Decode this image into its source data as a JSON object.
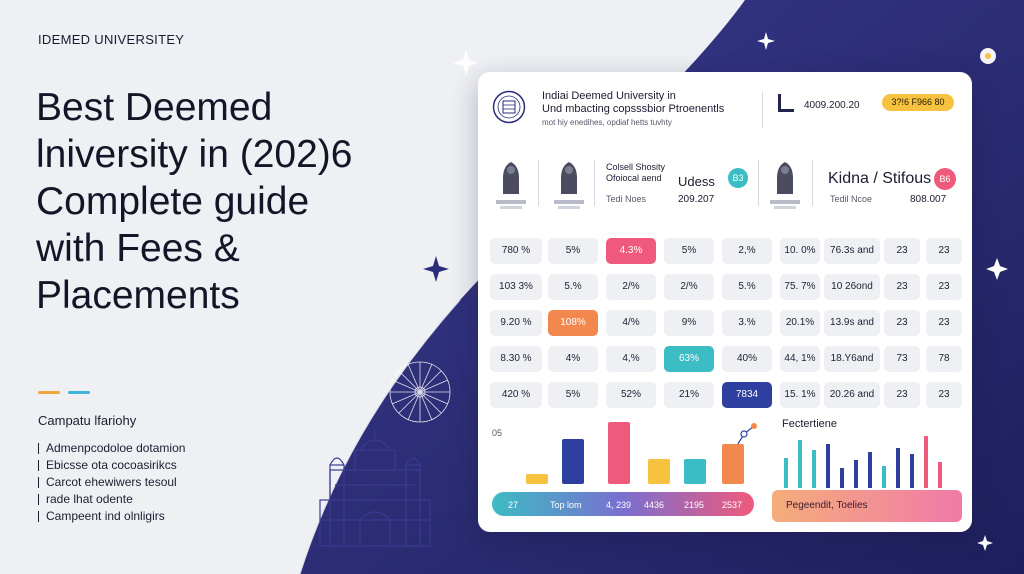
{
  "brand": "IDEMED UNIVERSITEY",
  "headline": [
    "Best Deemed",
    "lniversity in (202)6",
    "Complete guide",
    "with Fees &",
    "Placements"
  ],
  "section_title": "Campatu lfariohy",
  "bullets": [
    "Admenpcodoloe dotamion",
    "Ebicsse ota cocoasirikcs",
    "Carcot ehewiwers tesoul",
    "rade lhat odente",
    "Campeent ind olnligirs"
  ],
  "colors": {
    "navy": "#2c2d7a",
    "pink": "#ef5a7c",
    "orange": "#f2884d",
    "teal": "#3cbcc4",
    "blue": "#2e3fa0",
    "yellow": "#f6c240"
  },
  "card": {
    "header": {
      "line1": "Indiai Deemed University in",
      "line2": "Und mbacting copsssbior Ptroenentls",
      "line3": "mot hiy enedihes, opdiaf hetts tuvhty",
      "code": "4009.200.20",
      "badge": "3?!6 F966 80"
    },
    "inst1": {
      "desc": "Colsell Shosity Ofoiocal aend",
      "name": "Udess",
      "badge": "B3",
      "sub": "Tedi Noes",
      "value": "209.207"
    },
    "inst2": {
      "name": "Kidna / Stifous",
      "badge": "B6",
      "sub": "Tedil Ncoe",
      "value": "808.007"
    },
    "rows": [
      [
        "780 %",
        "5%",
        "4.3%",
        "5%",
        "2,%",
        "10. 0%",
        "76.3s and",
        "23",
        "23"
      ],
      [
        "103 3%",
        "5.%",
        "2/%",
        "2/%",
        "5.%",
        "75. 7%",
        "10 26ond",
        "23",
        "23"
      ],
      [
        "9.20 %",
        "108%",
        "4/%",
        "9%",
        "3.%",
        "20.1%",
        "13.9s and",
        "23",
        "23"
      ],
      [
        "8.30 %",
        "4%",
        "4,%",
        "63%",
        "40%",
        "44, 1%",
        "18.Y6and",
        "73",
        "78"
      ],
      [
        "420 %",
        "5%",
        "52%",
        "21%",
        "7834",
        "15. 1%",
        "20.26 and",
        "23",
        "23"
      ]
    ],
    "chart1": {
      "ytick": "05",
      "footer_labels": [
        "27",
        "Top lom",
        "4, 239",
        "4436",
        "2195",
        "2537"
      ]
    },
    "chart2": {
      "title": "Fectertiene",
      "footer": "Pegeendit, Toelies"
    }
  },
  "chart_data": [
    {
      "type": "bar",
      "categories": [
        "27",
        "Top lom",
        "4, 239",
        "4436",
        "2195",
        "2537"
      ],
      "values": [
        10,
        45,
        62,
        25,
        25,
        40
      ],
      "colors": [
        "#f6c240",
        "#2e3fa0",
        "#ef5a7c",
        "#f6c240",
        "#3cbcc4",
        "#f2884d"
      ]
    },
    {
      "type": "bar",
      "title": "Fectertiene",
      "values": [
        30,
        48,
        38,
        44,
        20,
        28,
        36,
        22,
        40,
        34,
        52,
        26
      ],
      "colors": [
        "#3cbcc4",
        "#3cbcc4",
        "#3cbcc4",
        "#2e3fa0",
        "#2e3fa0",
        "#2e3fa0",
        "#2e3fa0",
        "#3cbcc4",
        "#2e3fa0",
        "#2e3fa0",
        "#ef5a7c",
        "#ef5a7c"
      ]
    }
  ]
}
